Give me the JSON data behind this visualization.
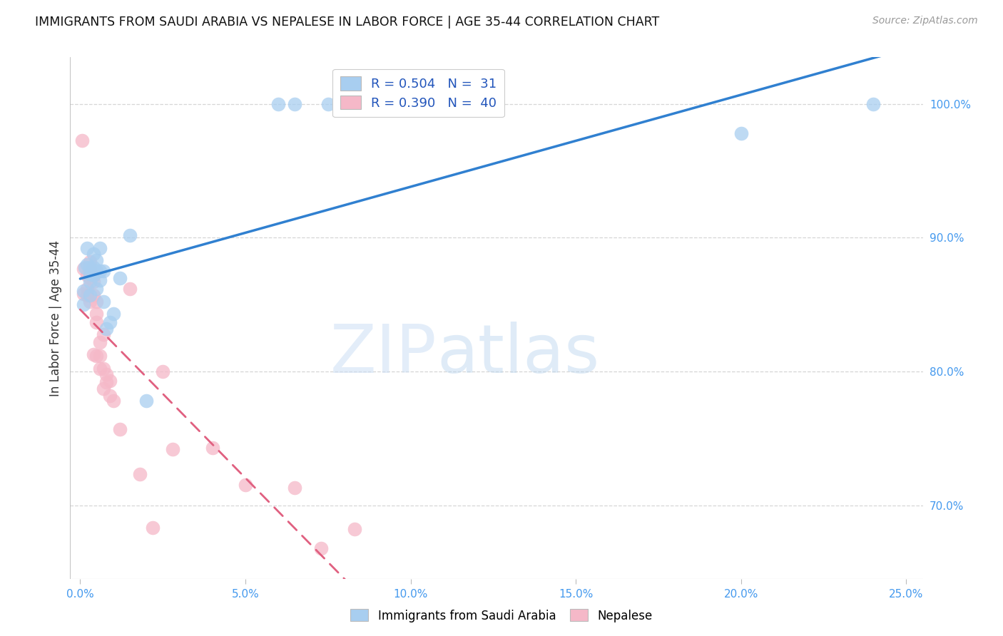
{
  "title": "IMMIGRANTS FROM SAUDI ARABIA VS NEPALESE IN LABOR FORCE | AGE 35-44 CORRELATION CHART",
  "source": "Source: ZipAtlas.com",
  "xlabel_ticks": [
    "0.0%",
    "5.0%",
    "10.0%",
    "15.0%",
    "20.0%",
    "25.0%"
  ],
  "xlabel_vals": [
    0.0,
    0.05,
    0.1,
    0.15,
    0.2,
    0.25
  ],
  "ylabel": "In Labor Force | Age 35-44",
  "ylabel_ticks": [
    "100.0%",
    "90.0%",
    "80.0%",
    "70.0%"
  ],
  "ylabel_vals": [
    1.0,
    0.9,
    0.8,
    0.7
  ],
  "xlim": [
    -0.003,
    0.255
  ],
  "ylim": [
    0.645,
    1.035
  ],
  "watermark_zip": "ZIP",
  "watermark_atlas": "atlas",
  "legend": {
    "saudi_R": "0.504",
    "saudi_N": " 31",
    "nepal_R": "0.390",
    "nepal_N": " 40"
  },
  "saudi_color": "#a8cef0",
  "nepal_color": "#f5b8c8",
  "saudi_line_color": "#3080d0",
  "nepal_line_color": "#e06080",
  "saudi_x": [
    0.001,
    0.001,
    0.0015,
    0.002,
    0.002,
    0.003,
    0.003,
    0.003,
    0.003,
    0.004,
    0.004,
    0.004,
    0.005,
    0.005,
    0.005,
    0.006,
    0.006,
    0.006,
    0.007,
    0.007,
    0.008,
    0.009,
    0.01,
    0.012,
    0.015,
    0.02,
    0.06,
    0.065,
    0.075,
    0.2,
    0.24
  ],
  "saudi_y": [
    0.85,
    0.86,
    0.878,
    0.88,
    0.892,
    0.857,
    0.867,
    0.873,
    0.878,
    0.872,
    0.878,
    0.888,
    0.862,
    0.875,
    0.883,
    0.868,
    0.875,
    0.892,
    0.852,
    0.875,
    0.832,
    0.837,
    0.843,
    0.87,
    0.902,
    0.778,
    1.0,
    1.0,
    1.0,
    0.978,
    1.0
  ],
  "nepal_x": [
    0.0005,
    0.001,
    0.001,
    0.002,
    0.002,
    0.002,
    0.003,
    0.003,
    0.003,
    0.003,
    0.004,
    0.004,
    0.004,
    0.004,
    0.005,
    0.005,
    0.005,
    0.005,
    0.006,
    0.006,
    0.006,
    0.007,
    0.007,
    0.007,
    0.008,
    0.008,
    0.009,
    0.009,
    0.01,
    0.012,
    0.015,
    0.018,
    0.022,
    0.025,
    0.028,
    0.04,
    0.05,
    0.065,
    0.073,
    0.083
  ],
  "nepal_y": [
    0.973,
    0.877,
    0.858,
    0.872,
    0.862,
    0.857,
    0.882,
    0.877,
    0.87,
    0.852,
    0.872,
    0.867,
    0.857,
    0.813,
    0.852,
    0.843,
    0.837,
    0.812,
    0.822,
    0.812,
    0.802,
    0.828,
    0.787,
    0.802,
    0.798,
    0.792,
    0.793,
    0.782,
    0.778,
    0.757,
    0.862,
    0.723,
    0.683,
    0.8,
    0.742,
    0.743,
    0.715,
    0.713,
    0.668,
    0.682
  ],
  "grid_color": "#cccccc",
  "background_color": "#ffffff"
}
